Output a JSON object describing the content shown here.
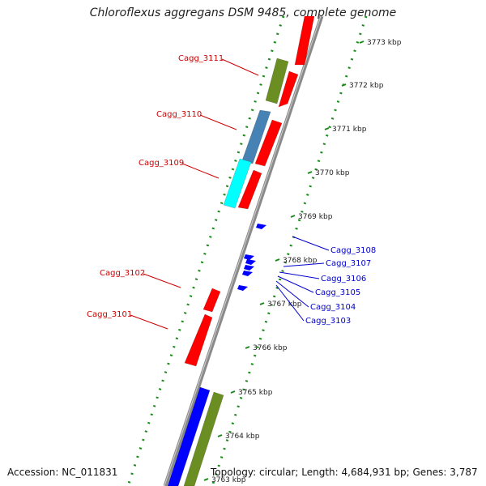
{
  "title": "Chloroflexus aggregans DSM 9485, complete genome",
  "accession": "Accession: NC_011831",
  "topology": "Topology: circular; Length: 4,684,931 bp; Genes: 3,787",
  "colors": {
    "backbone": "#8a8a8a",
    "tick_dots": "#1a8a1a",
    "gene_label_left": "#cc0000",
    "gene_label_right": "#0000cc",
    "red": "#ff0000",
    "olive": "#6b8e23",
    "steelblue": "#4682b4",
    "cyan": "#00ffff",
    "blue": "#0000ff"
  },
  "tick_labels": [
    "3773 kbp",
    "3772 kbp",
    "3771 kbp",
    "3770 kbp",
    "3769 kbp",
    "3768 kbp",
    "3767 kbp",
    "3766 kbp",
    "3765 kbp",
    "3764 kbp",
    "3763 kbp"
  ],
  "left_genes": [
    "Cagg_3111",
    "Cagg_3110",
    "Cagg_3109",
    "Cagg_3102",
    "Cagg_3101"
  ],
  "right_genes": [
    "Cagg_3108",
    "Cagg_3107",
    "Cagg_3106",
    "Cagg_3105",
    "Cagg_3104",
    "Cagg_3103"
  ]
}
